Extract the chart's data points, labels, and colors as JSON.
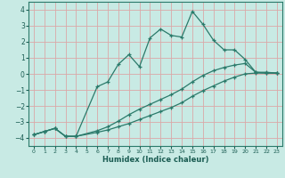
{
  "xlabel": "Humidex (Indice chaleur)",
  "xlim": [
    -0.5,
    23.5
  ],
  "ylim": [
    -4.5,
    4.5
  ],
  "xticks": [
    0,
    1,
    2,
    3,
    4,
    5,
    6,
    7,
    8,
    9,
    10,
    11,
    12,
    13,
    14,
    15,
    16,
    17,
    18,
    19,
    20,
    21,
    22,
    23
  ],
  "yticks": [
    -4,
    -3,
    -2,
    -1,
    0,
    1,
    2,
    3,
    4
  ],
  "bg_color": "#c8eae4",
  "grid_color": "#dba8a8",
  "line_color": "#2a7a6a",
  "line1_x": [
    0,
    1,
    2,
    3,
    4,
    6,
    7,
    8,
    9,
    10,
    11,
    12,
    13,
    14,
    15,
    16,
    17,
    18,
    19,
    20,
    21,
    22,
    23
  ],
  "line1_y": [
    -3.8,
    -3.6,
    -3.4,
    -3.9,
    -3.9,
    -0.8,
    -0.5,
    0.6,
    1.2,
    0.45,
    2.25,
    2.8,
    2.4,
    2.3,
    3.9,
    3.1,
    2.1,
    1.5,
    1.5,
    0.9,
    0.1,
    0.1,
    0.05
  ],
  "line2_x": [
    0,
    1,
    2,
    3,
    4,
    6,
    7,
    8,
    9,
    10,
    11,
    12,
    13,
    14,
    15,
    16,
    17,
    18,
    19,
    20,
    21,
    22,
    23
  ],
  "line2_y": [
    -3.8,
    -3.6,
    -3.4,
    -3.9,
    -3.9,
    -3.65,
    -3.5,
    -3.3,
    -3.1,
    -2.85,
    -2.6,
    -2.35,
    -2.1,
    -1.8,
    -1.4,
    -1.05,
    -0.75,
    -0.45,
    -0.2,
    0.0,
    0.05,
    0.05,
    0.05
  ],
  "line3_x": [
    0,
    1,
    2,
    3,
    4,
    6,
    7,
    8,
    9,
    10,
    11,
    12,
    13,
    14,
    15,
    16,
    17,
    18,
    19,
    20,
    21,
    22,
    23
  ],
  "line3_y": [
    -3.8,
    -3.6,
    -3.4,
    -3.9,
    -3.9,
    -3.55,
    -3.3,
    -2.95,
    -2.55,
    -2.2,
    -1.9,
    -1.6,
    -1.3,
    -0.95,
    -0.5,
    -0.1,
    0.2,
    0.4,
    0.55,
    0.65,
    0.1,
    0.05,
    0.05
  ]
}
